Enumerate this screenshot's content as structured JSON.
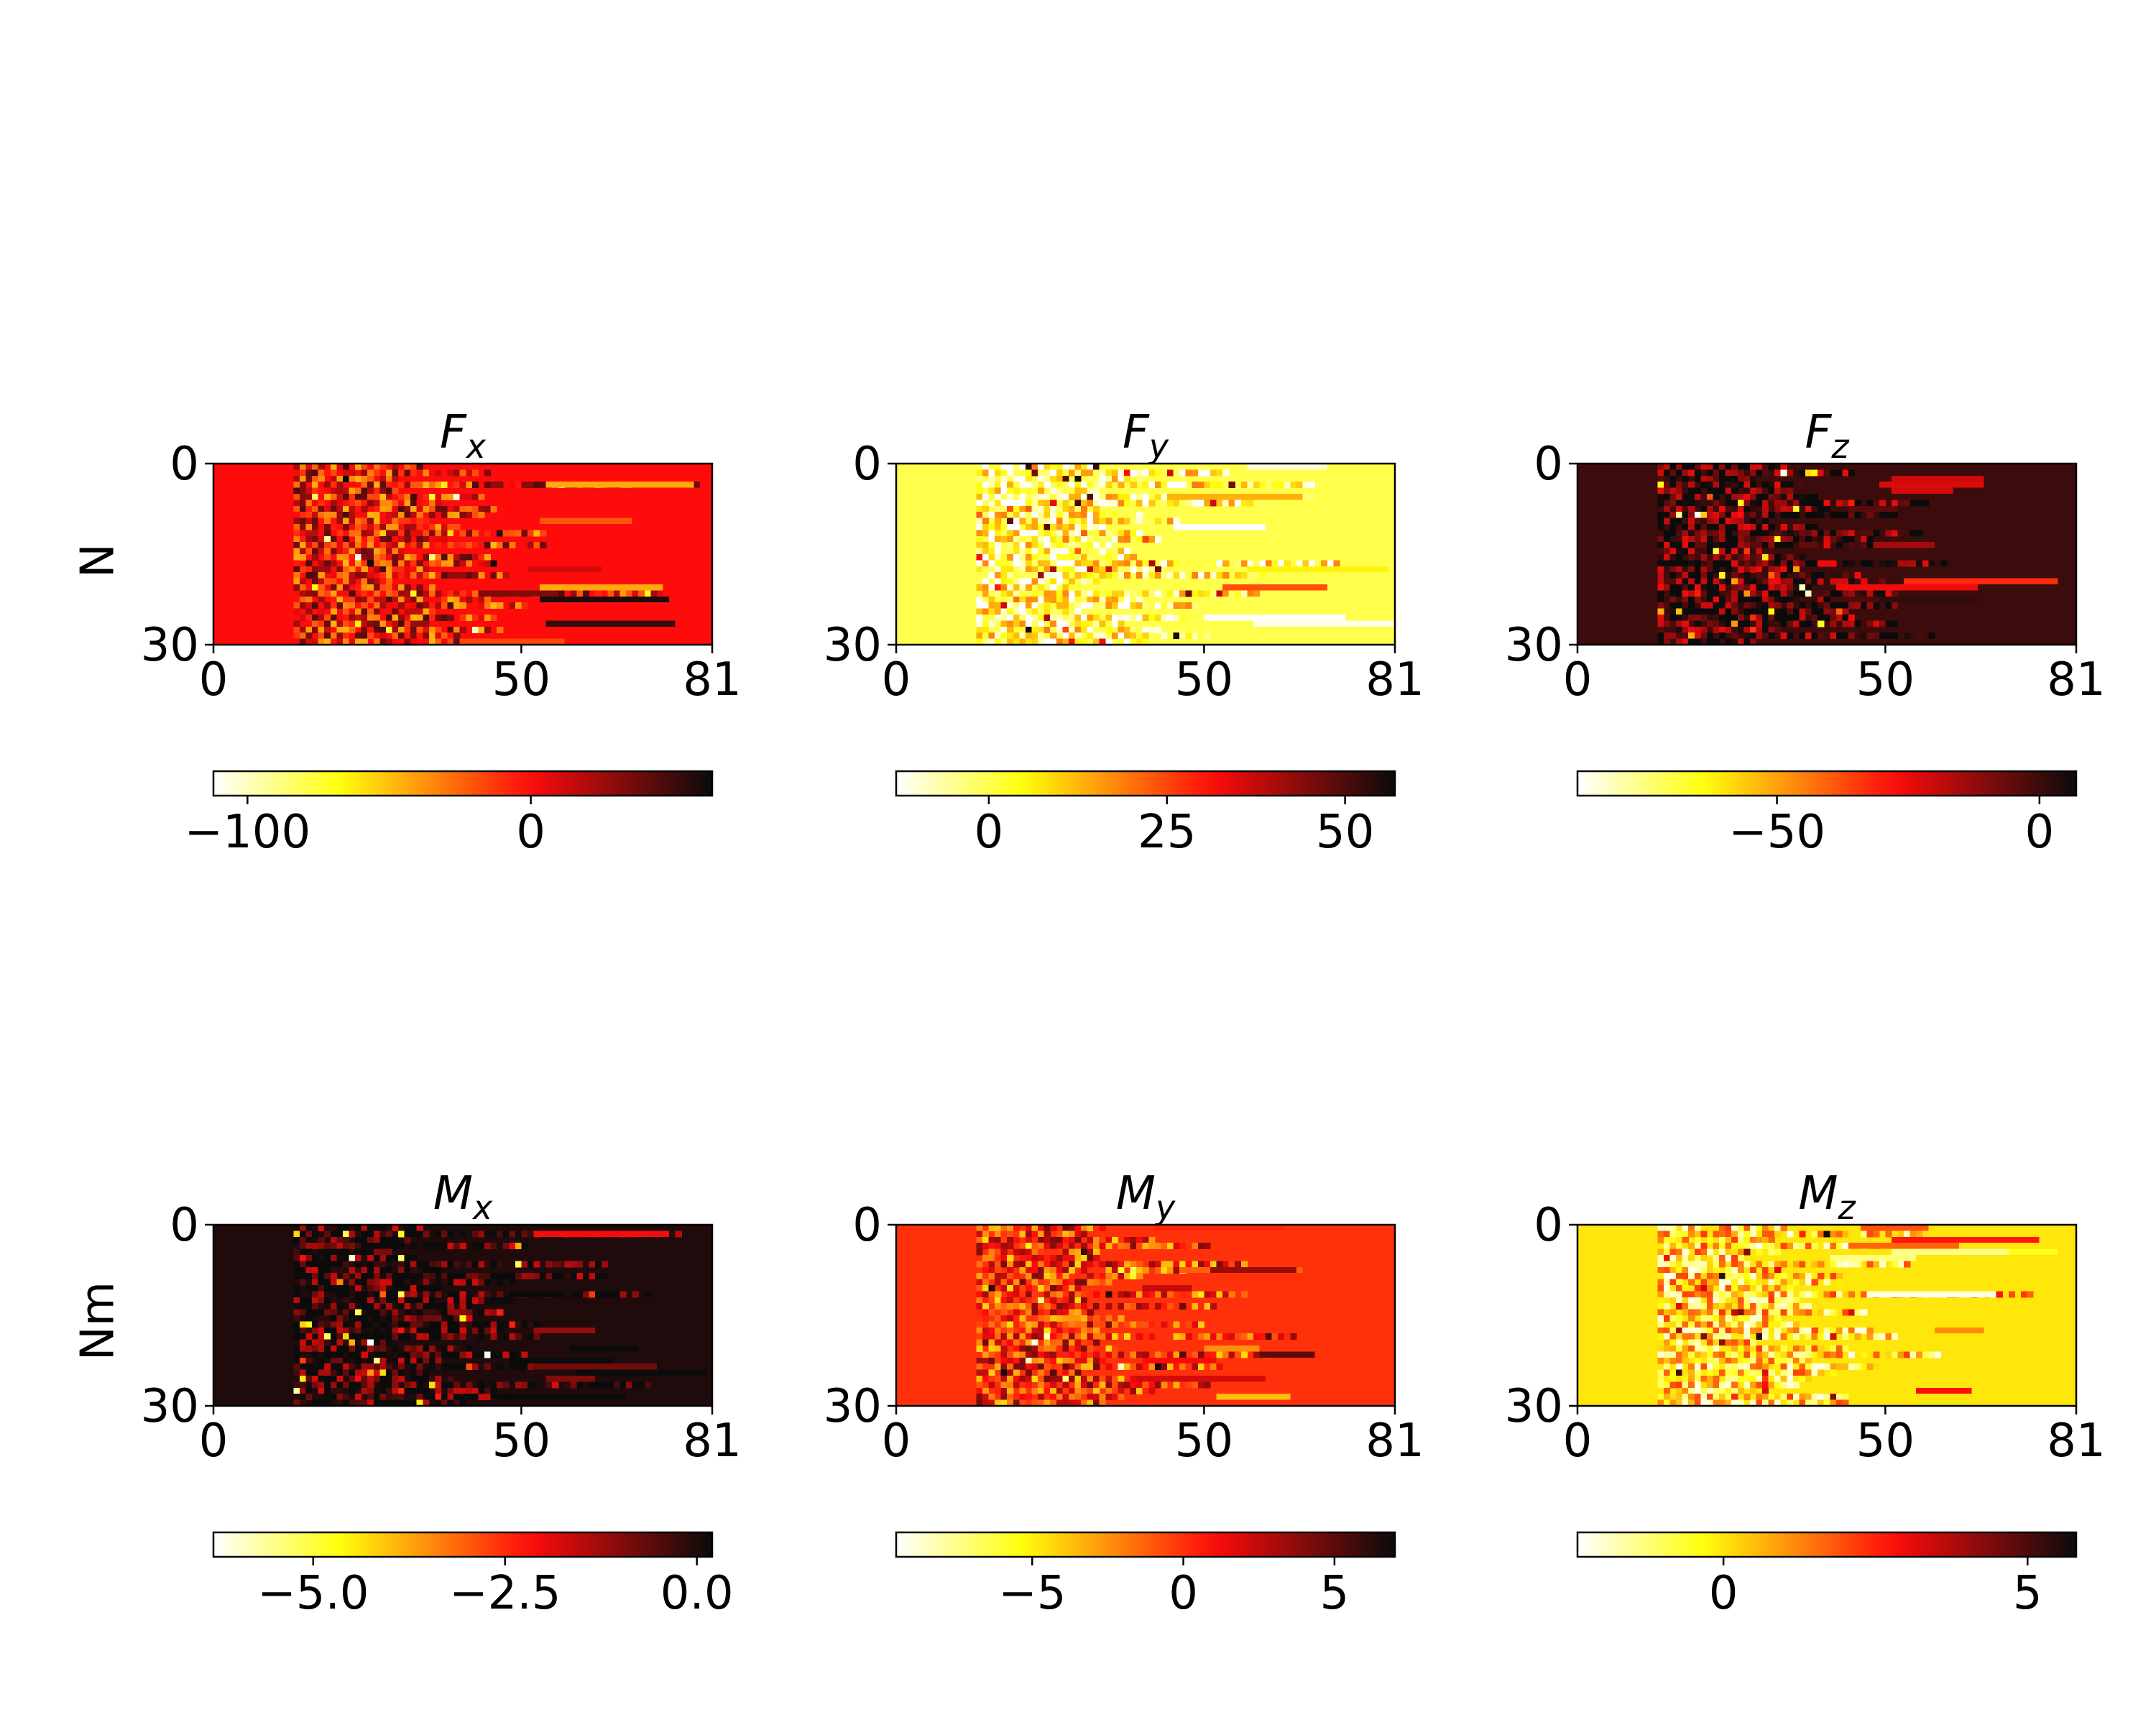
{
  "row_labels": [
    "N",
    "Nm"
  ],
  "chart_data": [
    {
      "type": "heatmap",
      "title_main": "F",
      "title_sub": "x",
      "row_label": "N",
      "grid": {
        "rows": 30,
        "cols": 81
      },
      "xlim": [
        0,
        81
      ],
      "ylim": [
        0,
        30
      ],
      "x_ticks": [
        0,
        50,
        81
      ],
      "y_ticks": [
        0,
        30
      ],
      "colorbar": {
        "min": -112,
        "max": 64,
        "ticks": [
          -100,
          0
        ],
        "tick_labels": [
          "−100",
          "0"
        ]
      },
      "base_value": 0,
      "active_start_col": 13,
      "seed": 11,
      "legend": "none",
      "colormap": "hot_r"
    },
    {
      "type": "heatmap",
      "title_main": "F",
      "title_sub": "y",
      "row_label": "",
      "grid": {
        "rows": 30,
        "cols": 81
      },
      "xlim": [
        0,
        81
      ],
      "ylim": [
        0,
        30
      ],
      "x_ticks": [
        0,
        50,
        81
      ],
      "y_ticks": [
        0,
        30
      ],
      "colorbar": {
        "min": -13,
        "max": 57,
        "ticks": [
          0,
          25,
          50
        ],
        "tick_labels": [
          "0",
          "25",
          "50"
        ]
      },
      "base_value": 0,
      "active_start_col": 13,
      "seed": 23,
      "legend": "none",
      "colormap": "hot_r"
    },
    {
      "type": "heatmap",
      "title_main": "F",
      "title_sub": "z",
      "row_label": "",
      "grid": {
        "rows": 30,
        "cols": 81
      },
      "xlim": [
        0,
        81
      ],
      "ylim": [
        0,
        30
      ],
      "x_ticks": [
        0,
        50,
        81
      ],
      "y_ticks": [
        0,
        30
      ],
      "colorbar": {
        "min": -88,
        "max": 7,
        "ticks": [
          -50,
          0
        ],
        "tick_labels": [
          "−50",
          "0"
        ]
      },
      "base_value": 0,
      "active_start_col": 13,
      "seed": 37,
      "legend": "none",
      "colormap": "hot_r"
    },
    {
      "type": "heatmap",
      "title_main": "M",
      "title_sub": "x",
      "row_label": "Nm",
      "grid": {
        "rows": 30,
        "cols": 81
      },
      "xlim": [
        0,
        81
      ],
      "ylim": [
        0,
        30
      ],
      "x_ticks": [
        0,
        50,
        81
      ],
      "y_ticks": [
        0,
        30
      ],
      "colorbar": {
        "min": -6.3,
        "max": 0.2,
        "ticks": [
          -5.0,
          -2.5,
          0.0
        ],
        "tick_labels": [
          "−5.0",
          "−2.5",
          "0.0"
        ]
      },
      "base_value": 0,
      "active_start_col": 13,
      "seed": 41,
      "legend": "none",
      "colormap": "hot_r"
    },
    {
      "type": "heatmap",
      "title_main": "M",
      "title_sub": "y",
      "row_label": "",
      "grid": {
        "rows": 30,
        "cols": 81
      },
      "xlim": [
        0,
        81
      ],
      "ylim": [
        0,
        30
      ],
      "x_ticks": [
        0,
        50,
        81
      ],
      "y_ticks": [
        0,
        30
      ],
      "colorbar": {
        "min": -9.5,
        "max": 7,
        "ticks": [
          -5,
          0,
          5
        ],
        "tick_labels": [
          "−5",
          "0",
          "5"
        ]
      },
      "base_value": 0,
      "active_start_col": 13,
      "seed": 53,
      "legend": "none",
      "colormap": "hot_r"
    },
    {
      "type": "heatmap",
      "title_main": "M",
      "title_sub": "z",
      "row_label": "",
      "grid": {
        "rows": 30,
        "cols": 81
      },
      "xlim": [
        0,
        81
      ],
      "ylim": [
        0,
        30
      ],
      "x_ticks": [
        0,
        50,
        81
      ],
      "y_ticks": [
        0,
        30
      ],
      "colorbar": {
        "min": -2.4,
        "max": 5.8,
        "ticks": [
          0,
          5
        ],
        "tick_labels": [
          "0",
          "5"
        ]
      },
      "base_value": 0,
      "active_start_col": 13,
      "seed": 67,
      "legend": "none",
      "colormap": "hot_r"
    }
  ]
}
